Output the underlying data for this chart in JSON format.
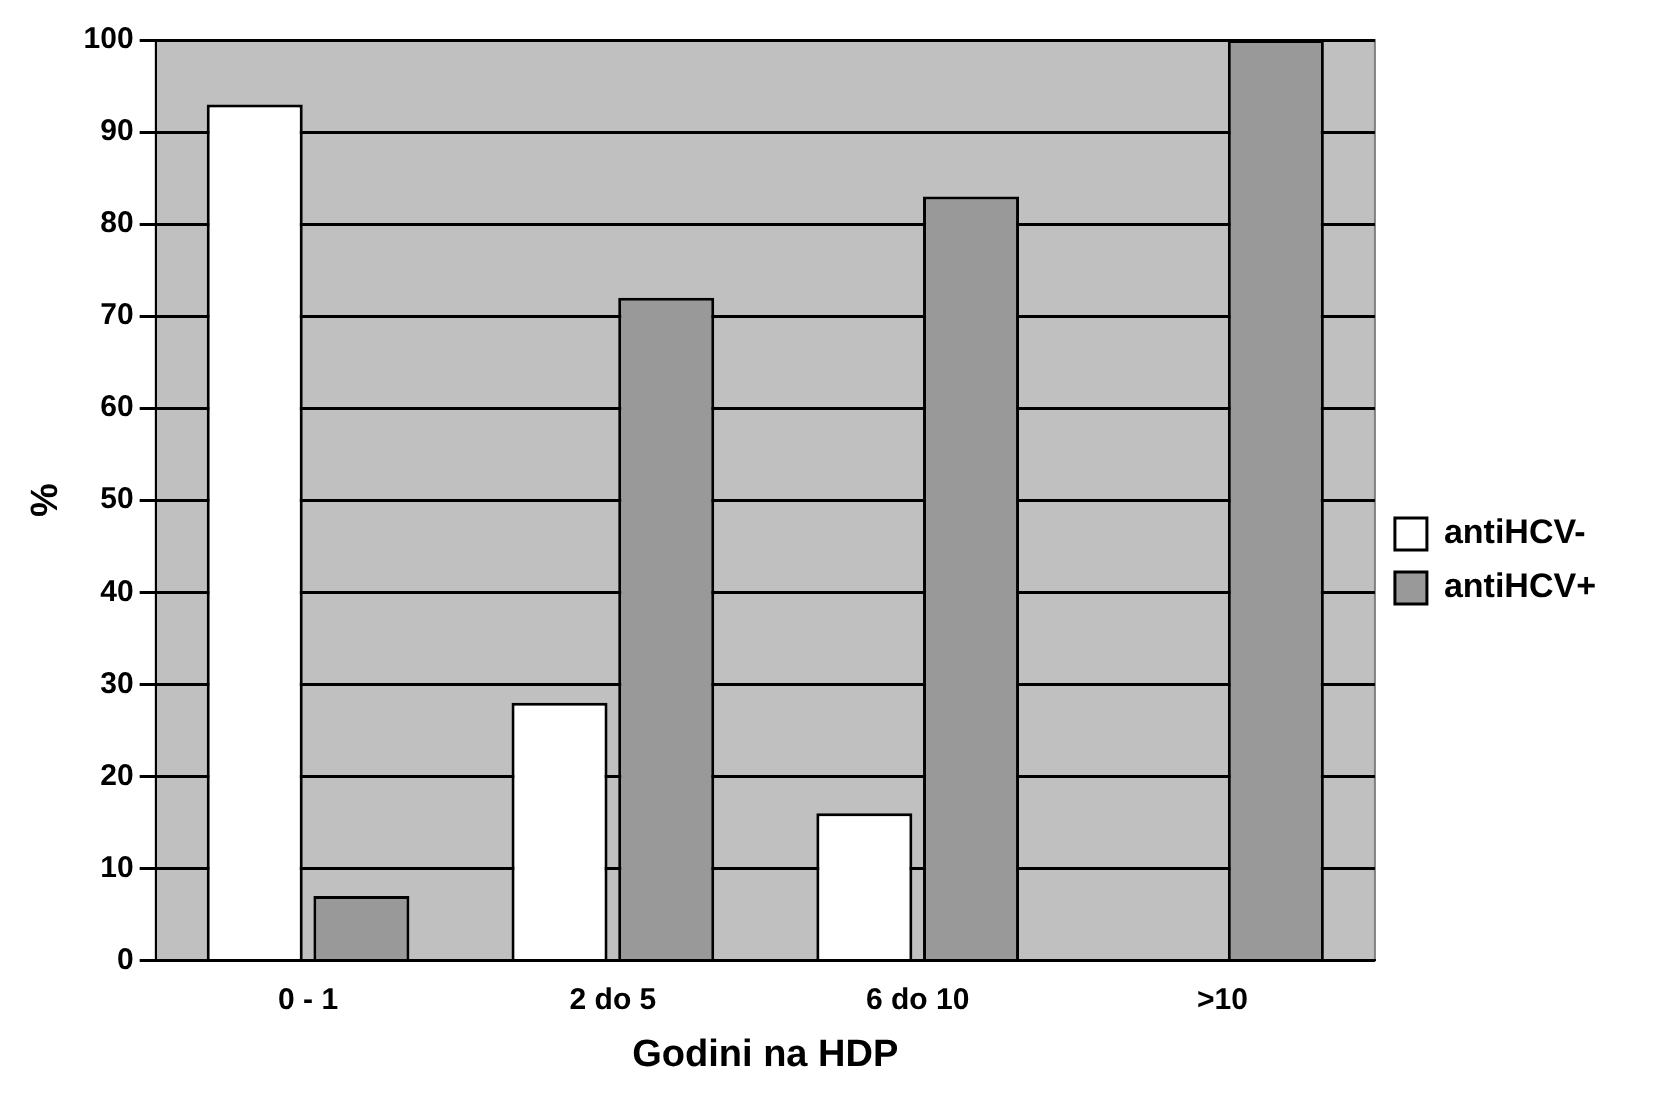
{
  "chart_data": {
    "type": "bar",
    "xlabel": "Godini na HDP",
    "ylabel": "%",
    "categories": [
      "0 - 1",
      "2 do 5",
      "6 do 10",
      ">10"
    ],
    "series": [
      {
        "name": "antiHCV-",
        "color": "#ffffff",
        "values": [
          93,
          28,
          16,
          0
        ]
      },
      {
        "name": "antiHCV+",
        "color": "#999999",
        "values": [
          7,
          72,
          83,
          100
        ]
      }
    ],
    "ylim": [
      0,
      100
    ],
    "yticks": [
      0,
      10,
      20,
      30,
      40,
      50,
      60,
      70,
      80,
      90,
      100
    ],
    "grid": "y",
    "legend": "right"
  }
}
